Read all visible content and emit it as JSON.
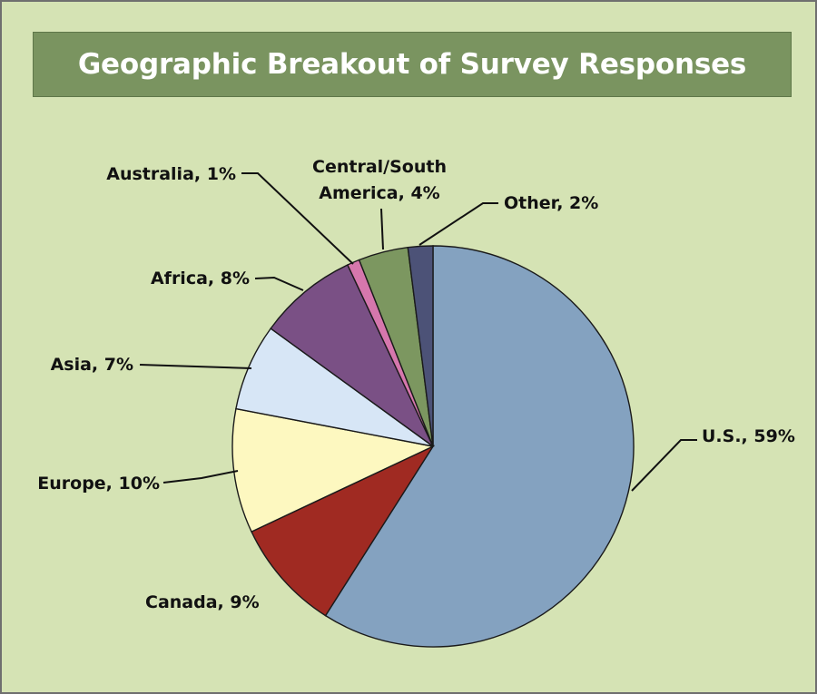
{
  "chart_data": {
    "type": "pie",
    "title": "Geographic Breakout of Survey Responses",
    "slices": [
      {
        "label": "U.S.",
        "value": 59,
        "color": "#84a2c0",
        "display": "U.S., 59%"
      },
      {
        "label": "Canada",
        "value": 9,
        "color": "#a02a22",
        "display": "Canada, 9%"
      },
      {
        "label": "Europe",
        "value": 10,
        "color": "#fdf8c0",
        "display": "Europe, 10%"
      },
      {
        "label": "Asia",
        "value": 7,
        "color": "#d7e6f6",
        "display": "Asia, 7%"
      },
      {
        "label": "Africa",
        "value": 8,
        "color": "#7a5085",
        "display": "Africa, 8%"
      },
      {
        "label": "Australia",
        "value": 1,
        "color": "#d677ad",
        "display": "Australia, 1%"
      },
      {
        "label": "Central/South America",
        "value": 4,
        "color": "#7c9760",
        "display": [
          "Central/South",
          "America, 4%"
        ]
      },
      {
        "label": "Other",
        "value": 2,
        "color": "#4c5277",
        "display": "Other, 2%"
      }
    ],
    "start": "12 o'clock",
    "direction": "clockwise",
    "legend": "none"
  }
}
